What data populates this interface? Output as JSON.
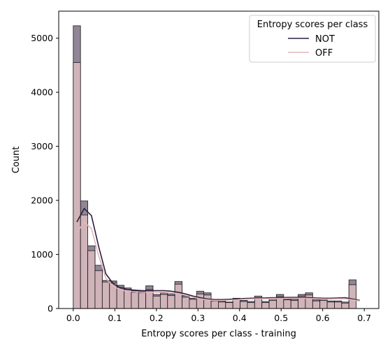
{
  "chart_data": {
    "type": "histogram",
    "title": "",
    "xlabel": "Entropy scores per class - training",
    "ylabel": "Count",
    "xlim": [
      -0.035,
      0.735
    ],
    "ylim": [
      0,
      5500
    ],
    "xticks": [
      "0.0",
      "0.1",
      "0.2",
      "0.3",
      "0.4",
      "0.5",
      "0.6",
      "0.7"
    ],
    "xtick_values": [
      0.0,
      0.1,
      0.2,
      0.3,
      0.4,
      0.5,
      0.6,
      0.7
    ],
    "yticks": [
      "0",
      "1000",
      "2000",
      "3000",
      "4000",
      "5000"
    ],
    "ytick_values": [
      0,
      1000,
      2000,
      3000,
      4000,
      5000
    ],
    "grid": false,
    "bins": {
      "start": 0.0,
      "width": 0.01745,
      "count": 40
    },
    "legend": {
      "title": "Entropy scores per class",
      "placement": "upper right",
      "entries": [
        "NOT",
        "OFF"
      ]
    },
    "series": [
      {
        "name": "NOT",
        "color": "#2d1e3e",
        "fill": "#8a7f92",
        "counts": [
          5230,
          1990,
          1160,
          800,
          520,
          510,
          430,
          380,
          330,
          320,
          420,
          260,
          290,
          270,
          500,
          240,
          190,
          320,
          290,
          160,
          140,
          120,
          190,
          150,
          130,
          230,
          130,
          180,
          260,
          180,
          170,
          260,
          290,
          160,
          170,
          140,
          140,
          120,
          530,
          0
        ],
        "kde": [
          1600,
          1850,
          1720,
          1150,
          640,
          460,
          380,
          350,
          340,
          330,
          330,
          330,
          330,
          320,
          300,
          270,
          230,
          200,
          175,
          165,
          165,
          170,
          175,
          185,
          190,
          195,
          195,
          200,
          200,
          205,
          205,
          205,
          200,
          195,
          190,
          190,
          195,
          200,
          175,
          150
        ]
      },
      {
        "name": "OFF",
        "color": "#e3b7ba",
        "fill": "#d7b9bc",
        "counts": [
          4550,
          1730,
          1070,
          700,
          490,
          470,
          390,
          350,
          300,
          290,
          350,
          230,
          260,
          240,
          450,
          210,
          170,
          270,
          250,
          140,
          120,
          110,
          160,
          130,
          110,
          190,
          110,
          150,
          220,
          160,
          150,
          230,
          250,
          140,
          150,
          120,
          120,
          100,
          440,
          0
        ],
        "kde": [
          1400,
          1600,
          1480,
          980,
          560,
          410,
          345,
          320,
          310,
          300,
          300,
          300,
          300,
          290,
          270,
          245,
          210,
          180,
          160,
          150,
          150,
          155,
          160,
          170,
          175,
          180,
          180,
          185,
          185,
          190,
          190,
          190,
          185,
          180,
          175,
          175,
          180,
          180,
          160,
          140
        ]
      }
    ]
  }
}
